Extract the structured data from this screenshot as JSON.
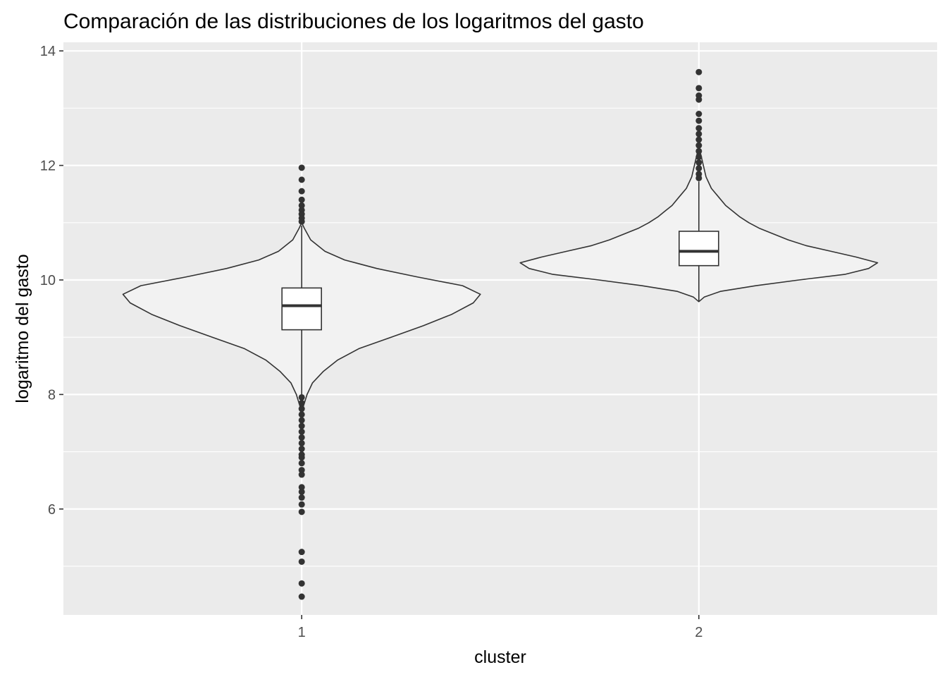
{
  "chart_data": {
    "type": "violin",
    "title": "Comparación de las distribuciones de los logaritmos del gasto",
    "xlabel": "cluster",
    "ylabel": "logaritmo del gasto",
    "categories": [
      "1",
      "2"
    ],
    "ylim": [
      4.15,
      14.15
    ],
    "y_ticks": [
      6,
      8,
      10,
      12,
      14
    ],
    "y_tick_labels": [
      "6",
      "8",
      "10",
      "12",
      "14"
    ],
    "grid": true,
    "colors": {
      "panel_background": "#ebebeb",
      "grid": "#ffffff",
      "violin_fill": "#f2f2f2",
      "outline": "#333333",
      "box_fill": "#ffffff"
    },
    "violins": [
      {
        "category": "1",
        "profile": [
          [
            7.55,
            0.0
          ],
          [
            7.8,
            0.01
          ],
          [
            8.0,
            0.03
          ],
          [
            8.2,
            0.06
          ],
          [
            8.4,
            0.12
          ],
          [
            8.6,
            0.2
          ],
          [
            8.8,
            0.32
          ],
          [
            9.0,
            0.5
          ],
          [
            9.2,
            0.68
          ],
          [
            9.4,
            0.84
          ],
          [
            9.6,
            0.96
          ],
          [
            9.75,
            1.0
          ],
          [
            9.9,
            0.9
          ],
          [
            10.05,
            0.65
          ],
          [
            10.2,
            0.42
          ],
          [
            10.35,
            0.24
          ],
          [
            10.5,
            0.13
          ],
          [
            10.7,
            0.05
          ],
          [
            10.9,
            0.015
          ],
          [
            11.0,
            0.0
          ]
        ],
        "box": {
          "q1": 9.13,
          "median": 9.55,
          "q3": 9.86,
          "whisker_low": 8.0,
          "whisker_high": 10.95
        },
        "outliers": [
          11.96,
          11.75,
          11.55,
          11.4,
          11.3,
          11.22,
          11.15,
          11.08,
          11.02,
          7.95,
          7.85,
          7.75,
          7.65,
          7.55,
          7.45,
          7.35,
          7.25,
          7.15,
          7.05,
          6.95,
          6.9,
          6.8,
          6.68,
          6.6,
          6.38,
          6.3,
          6.2,
          6.08,
          5.95,
          5.25,
          5.08,
          4.7,
          4.47
        ]
      },
      {
        "category": "2",
        "profile": [
          [
            9.62,
            0.0
          ],
          [
            9.7,
            0.03
          ],
          [
            9.8,
            0.12
          ],
          [
            9.9,
            0.32
          ],
          [
            10.0,
            0.56
          ],
          [
            10.1,
            0.82
          ],
          [
            10.2,
            0.95
          ],
          [
            10.3,
            1.0
          ],
          [
            10.4,
            0.88
          ],
          [
            10.5,
            0.74
          ],
          [
            10.6,
            0.6
          ],
          [
            10.7,
            0.5
          ],
          [
            10.8,
            0.42
          ],
          [
            10.9,
            0.34
          ],
          [
            11.0,
            0.28
          ],
          [
            11.1,
            0.23
          ],
          [
            11.2,
            0.19
          ],
          [
            11.3,
            0.15
          ],
          [
            11.45,
            0.11
          ],
          [
            11.6,
            0.07
          ],
          [
            11.8,
            0.04
          ],
          [
            12.0,
            0.025
          ],
          [
            12.2,
            0.01
          ],
          [
            12.35,
            0.0
          ]
        ],
        "box": {
          "q1": 10.25,
          "median": 10.5,
          "q3": 10.85,
          "whisker_low": 9.62,
          "whisker_high": 11.72
        },
        "outliers": [
          13.63,
          13.35,
          13.22,
          13.15,
          12.9,
          12.78,
          12.65,
          12.55,
          12.45,
          12.35,
          12.25,
          12.15,
          12.05,
          11.95,
          11.85,
          11.78
        ]
      }
    ]
  }
}
